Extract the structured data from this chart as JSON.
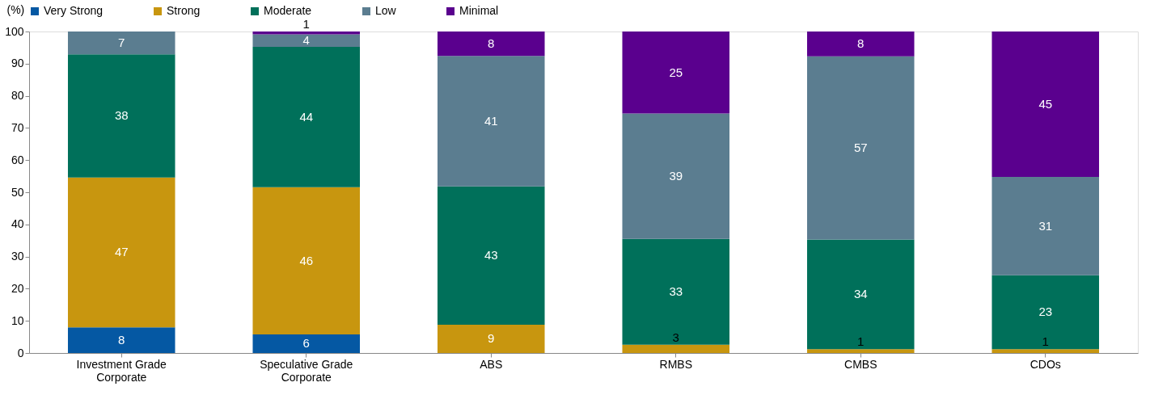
{
  "chart_data": {
    "type": "bar",
    "stacked": true,
    "ylabel": "(%)",
    "categories": [
      "Investment Grade Corporate",
      "Speculative Grade Corporate",
      "ABS",
      "RMBS",
      "CMBS",
      "CDOs"
    ],
    "series": [
      {
        "name": "Very Strong",
        "color": "#0558a3",
        "values": [
          8.0,
          5.8,
          null,
          null,
          null,
          null
        ],
        "value_labels": [
          "8",
          "6",
          null,
          null,
          null,
          null
        ]
      },
      {
        "name": "Strong",
        "color": "#c8960f",
        "values": [
          46.6,
          45.8,
          8.8,
          2.6,
          1.2,
          1.2
        ],
        "value_labels": [
          "47",
          "46",
          "9",
          "3",
          "1",
          "1"
        ]
      },
      {
        "name": "Moderate",
        "color": "#00705a",
        "values": [
          38.3,
          43.6,
          43.0,
          32.9,
          34.1,
          23.0
        ],
        "value_labels": [
          "38",
          "44",
          "43",
          "33",
          "34",
          "23"
        ]
      },
      {
        "name": "Low",
        "color": "#5b7d90",
        "values": [
          7.1,
          3.9,
          40.6,
          39.0,
          57.0,
          30.6
        ],
        "value_labels": [
          "7",
          "4",
          "41",
          "39",
          "57",
          "31"
        ]
      },
      {
        "name": "Minimal",
        "color": "#5a008e",
        "values": [
          null,
          0.9,
          7.6,
          25.5,
          7.7,
          45.2
        ],
        "value_labels": [
          null,
          "1",
          "8",
          "25",
          "8",
          "45"
        ]
      }
    ],
    "ylim": [
      0,
      100
    ],
    "yticks": [
      0,
      10,
      20,
      30,
      40,
      50,
      60,
      70,
      80,
      90,
      100
    ],
    "grid": false,
    "legend": "top"
  }
}
